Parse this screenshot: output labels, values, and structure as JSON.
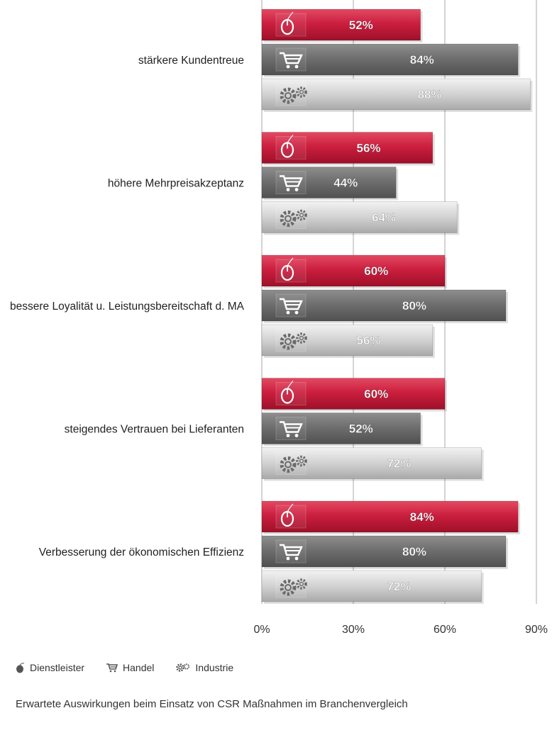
{
  "chart_data": {
    "type": "bar",
    "orientation": "horizontal",
    "categories": [
      "stärkere Kundentreue",
      "höhere Mehrpreisakzeptanz",
      "bessere Loyalität u. Leistungsbereitschaft d. MA",
      "steigendes Vertrauen bei Lieferanten",
      "Verbesserung der ökonomischen Effizienz"
    ],
    "series": [
      {
        "name": "Dienstleister",
        "icon": "mouse-icon",
        "color": "#c8213f",
        "values": [
          52,
          56,
          60,
          60,
          84
        ],
        "labels": [
          "52%",
          "56%",
          "60%",
          "60%",
          "84%"
        ]
      },
      {
        "name": "Handel",
        "icon": "cart-icon",
        "color": "#6e6e6e",
        "values": [
          84,
          44,
          80,
          52,
          80
        ],
        "labels": [
          "84%",
          "44%",
          "80%",
          "52%",
          "80%"
        ]
      },
      {
        "name": "Industrie",
        "icon": "gears-icon",
        "color": "#c9c9c9",
        "values": [
          88,
          64,
          56,
          72,
          72
        ],
        "labels": [
          "88%",
          "64%",
          "56%",
          "72%",
          "72%"
        ]
      }
    ],
    "xlim": [
      0,
      90
    ],
    "xticks": [
      0,
      30,
      60,
      90
    ],
    "xtick_labels": [
      "0%",
      "30%",
      "60%",
      "90%"
    ],
    "grid": true,
    "legend": "bottom-left"
  },
  "legend": {
    "dienstleister": "Dienstleister",
    "handel": "Handel",
    "industrie": "Industrie"
  },
  "caption": "Erwartete Auswirkungen beim Einsatz von CSR Maßnahmen im Branchenvergleich"
}
